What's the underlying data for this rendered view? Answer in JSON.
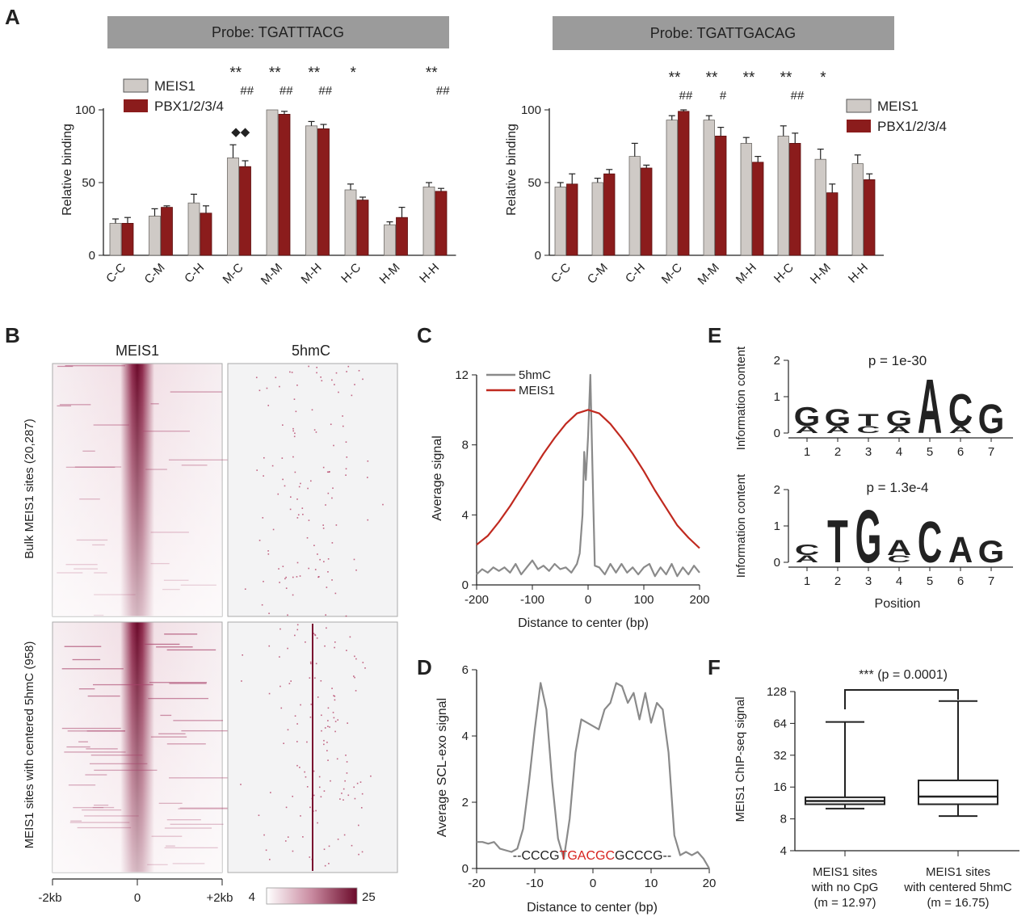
{
  "figure": {
    "panel_letters": {
      "A": "A",
      "B": "B",
      "C": "C",
      "D": "D",
      "E": "E",
      "F": "F"
    }
  },
  "colors": {
    "meis1_bar": "#cfcac6",
    "pbx_bar": "#8b1c1c",
    "line_5hmc": "#8a8a8a",
    "line_meis1": "#c0291f",
    "heat_max": "#6b0a2a",
    "motif_A": "#3aa83a",
    "motif_C": "#2230a8",
    "motif_G": "#f08a1e",
    "motif_T": "#d7231f"
  },
  "chart_data": [
    {
      "id": "A_left",
      "type": "bar",
      "title": "Probe: TGATTTACG",
      "ylabel": "Relative binding",
      "ylim": [
        0,
        100
      ],
      "yticks": [
        "0",
        "50",
        "100"
      ],
      "categories": [
        "C-C",
        "C-M",
        "C-H",
        "M-C",
        "M-M",
        "M-H",
        "H-C",
        "H-M",
        "H-H"
      ],
      "series": [
        {
          "name": "MEIS1",
          "values": [
            22,
            27,
            36,
            67,
            100,
            89,
            45,
            21,
            47
          ],
          "errors": [
            3,
            5,
            6,
            9,
            0,
            3,
            4,
            2,
            3
          ]
        },
        {
          "name": "PBX1/2/3/4",
          "values": [
            22,
            33,
            29,
            61,
            97,
            87,
            38,
            26,
            44
          ],
          "errors": [
            4,
            1,
            5,
            4,
            2,
            3,
            2,
            7,
            2
          ]
        }
      ],
      "annotations": {
        "stars": [
          "",
          "",
          "",
          "**",
          "**",
          "**",
          "*",
          "",
          "**"
        ],
        "hashes": [
          "",
          "",
          "",
          "##",
          "##",
          "##",
          "",
          "",
          "##"
        ],
        "diamonds": [
          "",
          "",
          "",
          "◆◆",
          "",
          "",
          "",
          "",
          ""
        ]
      }
    },
    {
      "id": "A_right",
      "type": "bar",
      "title": "Probe: TGATTGACAG",
      "ylabel": "Relative binding",
      "ylim": [
        0,
        100
      ],
      "yticks": [
        "0",
        "50",
        "100"
      ],
      "categories": [
        "C-C",
        "C-M",
        "C-H",
        "M-C",
        "M-M",
        "M-H",
        "H-C",
        "H-M",
        "H-H"
      ],
      "series": [
        {
          "name": "MEIS1",
          "values": [
            47,
            50,
            68,
            93,
            93,
            77,
            82,
            66,
            63
          ],
          "errors": [
            3,
            3,
            9,
            3,
            3,
            4,
            7,
            7,
            6
          ]
        },
        {
          "name": "PBX1/2/3/4",
          "values": [
            49,
            56,
            60,
            99,
            82,
            64,
            77,
            43,
            52
          ],
          "errors": [
            7,
            3,
            2,
            1,
            6,
            4,
            7,
            6,
            4
          ]
        }
      ],
      "annotations": {
        "stars": [
          "",
          "",
          "",
          "**",
          "**",
          "**",
          "**",
          "*",
          ""
        ],
        "hashes": [
          "",
          "",
          "",
          "##",
          "#",
          "",
          "##",
          "",
          ""
        ]
      }
    },
    {
      "id": "B_heatmaps",
      "type": "heatmap",
      "columns": [
        "MEIS1",
        "5hmC"
      ],
      "row_groups": [
        "Bulk MEIS1 sites (20,287)",
        "MEIS1 sites with centered 5hmC (958)"
      ],
      "xticks": [
        "-2kb",
        "0",
        "+2kb"
      ],
      "colorbar": {
        "min": "4",
        "max": "25"
      }
    },
    {
      "id": "C",
      "type": "line",
      "xlabel": "Distance to center (bp)",
      "ylabel": "Average signal",
      "xlim": [
        -200,
        200
      ],
      "ylim": [
        0,
        12
      ],
      "xticks": [
        "-200",
        "-100",
        "0",
        "100",
        "200"
      ],
      "yticks": [
        "0",
        "4",
        "8",
        "12"
      ],
      "series": [
        {
          "name": "5hmC",
          "x": [
            -200,
            -190,
            -180,
            -170,
            -160,
            -150,
            -140,
            -130,
            -120,
            -110,
            -100,
            -90,
            -80,
            -70,
            -60,
            -50,
            -40,
            -30,
            -20,
            -15,
            -10,
            -7,
            -4,
            0,
            4,
            8,
            12,
            20,
            30,
            40,
            50,
            60,
            70,
            80,
            90,
            100,
            110,
            120,
            130,
            140,
            150,
            160,
            170,
            180,
            190,
            200
          ],
          "y": [
            0.6,
            0.9,
            0.7,
            1.0,
            0.8,
            1.0,
            0.7,
            1.2,
            0.6,
            1.0,
            1.4,
            0.9,
            1.1,
            0.8,
            1.2,
            0.9,
            1.0,
            0.7,
            1.2,
            1.8,
            4.0,
            7.6,
            6.0,
            8.5,
            12.0,
            6.5,
            1.1,
            1.0,
            0.6,
            1.2,
            0.7,
            1.2,
            0.7,
            1.0,
            0.6,
            1.0,
            1.2,
            0.5,
            1.0,
            0.6,
            1.2,
            0.5,
            1.0,
            0.6,
            1.1,
            0.7
          ]
        },
        {
          "name": "MEIS1",
          "x": [
            -200,
            -180,
            -160,
            -140,
            -120,
            -100,
            -80,
            -60,
            -40,
            -20,
            0,
            20,
            40,
            60,
            80,
            100,
            120,
            140,
            160,
            180,
            200
          ],
          "y": [
            2.3,
            2.8,
            3.6,
            4.5,
            5.5,
            6.5,
            7.5,
            8.4,
            9.2,
            9.8,
            10.0,
            9.8,
            9.2,
            8.4,
            7.5,
            6.5,
            5.4,
            4.4,
            3.4,
            2.7,
            2.1
          ]
        }
      ]
    },
    {
      "id": "D",
      "type": "line",
      "xlabel": "Distance to center (bp)",
      "ylabel": "Average SCL-exo signal",
      "xlim": [
        -20,
        20
      ],
      "ylim": [
        0,
        6
      ],
      "xticks": [
        "-20",
        "-10",
        "0",
        "10",
        "20"
      ],
      "yticks": [
        "0",
        "2",
        "4",
        "6"
      ],
      "sequence": {
        "left": "--CCCG",
        "center": "TGACGC",
        "right": "GCCCG--"
      },
      "series": [
        {
          "name": "SCL-exo",
          "x": [
            -20,
            -19,
            -18,
            -17,
            -16,
            -15,
            -14,
            -13,
            -12,
            -11,
            -10,
            -9,
            -8,
            -7,
            -6,
            -5,
            -4,
            -3,
            -2,
            -1,
            0,
            1,
            2,
            3,
            4,
            5,
            6,
            7,
            8,
            9,
            10,
            11,
            12,
            13,
            14,
            15,
            16,
            17,
            18,
            19,
            20
          ],
          "y": [
            0.8,
            0.8,
            0.75,
            0.8,
            0.6,
            0.55,
            0.5,
            0.6,
            1.2,
            2.6,
            4.2,
            5.6,
            4.8,
            2.6,
            0.9,
            0.3,
            1.5,
            3.5,
            4.5,
            4.4,
            4.3,
            4.2,
            4.8,
            5.0,
            5.6,
            5.5,
            5.0,
            5.3,
            4.5,
            5.3,
            4.4,
            5.0,
            4.8,
            3.5,
            1.0,
            0.4,
            0.5,
            0.4,
            0.5,
            0.3,
            0.0
          ]
        }
      ]
    },
    {
      "id": "E",
      "type": "other",
      "motifs": [
        {
          "p_label": "p = 1e-30",
          "letters": [
            "G",
            "G",
            "T",
            "G",
            "A",
            "C",
            "G"
          ],
          "sub": [
            "A",
            "A",
            "C",
            "A",
            "",
            "A",
            ""
          ]
        },
        {
          "p_label": "p = 1.3e-4",
          "letters": [
            "C",
            "T",
            "G",
            "A",
            "C",
            "A",
            "G"
          ],
          "sub": [
            "A",
            "",
            "",
            "C",
            "",
            "",
            ""
          ]
        }
      ],
      "ylabel": "Information content",
      "xlabel": "Position",
      "ylim": [
        0,
        2
      ],
      "yticks": [
        "0",
        "1",
        "2"
      ],
      "xticks": [
        "1",
        "2",
        "3",
        "4",
        "5",
        "6",
        "7"
      ]
    },
    {
      "id": "F",
      "type": "box",
      "ylabel": "MEIS1 ChIP-seq signal",
      "yscale": "log2",
      "ylim": [
        4,
        128
      ],
      "yticks": [
        "4",
        "8",
        "16",
        "32",
        "64",
        "128"
      ],
      "groups": [
        {
          "label": [
            "MEIS1 sites",
            "with no CpG",
            "(m = 12.97)"
          ],
          "whisker_low": 10,
          "q1": 11,
          "median": 11.8,
          "q3": 12.8,
          "whisker_high": 66
        },
        {
          "label": [
            "MEIS1 sites",
            "with centered 5hmC",
            "(m = 16.75)"
          ],
          "whisker_low": 8.5,
          "q1": 11,
          "median": 13,
          "q3": 18.5,
          "whisker_high": 104
        }
      ],
      "significance": "*** (p = 0.0001)"
    }
  ]
}
